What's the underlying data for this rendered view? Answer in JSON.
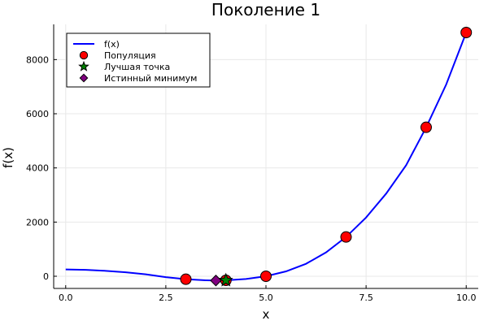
{
  "chart_data": {
    "type": "line",
    "title": "Поколение 1",
    "xlabel": "x",
    "ylabel": "f(x)",
    "xlim": [
      -0.3,
      10.3
    ],
    "ylim": [
      -450,
      9300
    ],
    "xticks": [
      0.0,
      2.5,
      5.0,
      7.5,
      10.0
    ],
    "xtick_labels": [
      "0.0",
      "2.5",
      "5.0",
      "7.5",
      "10.0"
    ],
    "yticks": [
      0,
      2000,
      4000,
      6000,
      8000
    ],
    "ytick_labels": [
      "0",
      "2000",
      "4000",
      "6000",
      "8000"
    ],
    "grid": true,
    "legend_position": "top-left",
    "series": [
      {
        "name": "f(x)",
        "kind": "line",
        "color": "#0000ff",
        "x": [
          0,
          0.5,
          1,
          1.5,
          2,
          2.5,
          3,
          3.5,
          3.75,
          4,
          4.5,
          5,
          5.5,
          6,
          6.5,
          7,
          7.5,
          8,
          8.5,
          9,
          9.5,
          10
        ],
        "y": [
          250,
          238,
          200,
          148,
          70,
          -35,
          -110,
          -150,
          -158,
          -150,
          -100,
          0,
          180,
          460,
          880,
          1450,
          2170,
          3050,
          4100,
          5500,
          7080,
          9000
        ]
      },
      {
        "name": "Популяция",
        "kind": "scatter",
        "marker": "circle",
        "color": "#ff0000",
        "x": [
          3,
          4,
          5,
          7,
          9,
          10
        ],
        "y": [
          -110,
          -150,
          0,
          1450,
          5500,
          9000
        ]
      },
      {
        "name": "Лучшая точка",
        "kind": "scatter",
        "marker": "star",
        "color": "#008000",
        "x": [
          4
        ],
        "y": [
          -150
        ]
      },
      {
        "name": "Истинный минимум",
        "kind": "scatter",
        "marker": "diamond",
        "color": "#800080",
        "x": [
          3.75
        ],
        "y": [
          -158
        ]
      }
    ]
  }
}
